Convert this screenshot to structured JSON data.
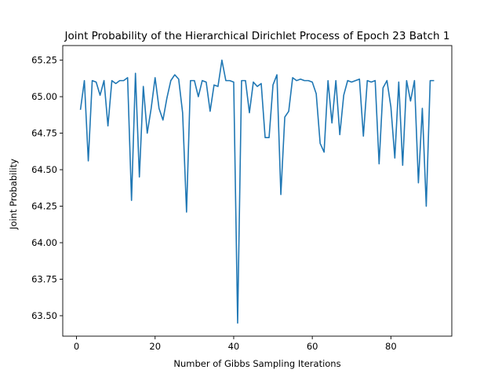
{
  "chart_data": {
    "type": "line",
    "title": "Joint Probability of the Hierarchical Dirichlet Process of Epoch 23 Batch 1",
    "xlabel": "Number of Gibbs Sampling Iterations",
    "ylabel": "Joint Probability",
    "xlim": [
      -3.5,
      95.5
    ],
    "ylim": [
      63.36,
      65.35
    ],
    "xticks": [
      0,
      20,
      40,
      60,
      80
    ],
    "yticks": [
      63.5,
      63.75,
      64.0,
      64.25,
      64.5,
      64.75,
      65.0,
      65.25
    ],
    "ytick_labels": [
      "63.50",
      "63.75",
      "64.00",
      "64.25",
      "64.50",
      "64.75",
      "65.00",
      "65.25"
    ],
    "line_color": "#1f77b4",
    "grid": false,
    "series": [
      {
        "x": [
          1,
          2,
          3,
          4,
          5,
          6,
          7,
          8,
          9,
          10,
          11,
          12,
          13,
          14,
          15,
          16,
          17,
          18,
          19,
          20,
          21,
          22,
          23,
          24,
          25,
          26,
          27,
          28,
          29,
          30,
          31,
          32,
          33,
          34,
          35,
          36,
          37,
          38,
          39,
          40,
          41,
          42,
          43,
          44,
          45,
          46,
          47,
          48,
          49,
          50,
          51,
          52,
          53,
          54,
          55,
          56,
          57,
          58,
          59,
          60,
          61,
          62,
          63,
          64,
          65,
          66,
          67,
          68,
          69,
          70,
          71,
          72,
          73,
          74,
          75,
          76,
          77,
          78,
          79,
          80,
          81,
          82,
          83,
          84,
          85,
          86,
          87,
          88,
          89,
          90,
          91
        ],
        "y": [
          64.91,
          65.11,
          64.56,
          65.11,
          65.1,
          65.01,
          65.11,
          64.8,
          65.11,
          65.09,
          65.11,
          65.11,
          65.13,
          64.29,
          65.16,
          64.45,
          65.07,
          64.75,
          64.92,
          65.13,
          64.92,
          64.84,
          64.99,
          65.11,
          65.15,
          65.12,
          64.89,
          64.21,
          65.11,
          65.11,
          65.0,
          65.11,
          65.1,
          64.9,
          65.08,
          65.07,
          65.25,
          65.11,
          65.11,
          65.1,
          63.45,
          65.11,
          65.11,
          64.89,
          65.1,
          65.07,
          65.09,
          64.72,
          64.72,
          65.08,
          65.15,
          64.33,
          64.86,
          64.9,
          65.13,
          65.11,
          65.12,
          65.11,
          65.11,
          65.1,
          65.02,
          64.68,
          64.62,
          65.11,
          64.82,
          65.11,
          64.74,
          65.01,
          65.11,
          65.1,
          65.11,
          65.12,
          64.73,
          65.11,
          65.1,
          65.11,
          64.54,
          65.06,
          65.11,
          64.93,
          64.58,
          65.1,
          64.53,
          65.11,
          64.97,
          65.11,
          64.41,
          64.92,
          64.25,
          65.11,
          65.11
        ]
      }
    ]
  }
}
